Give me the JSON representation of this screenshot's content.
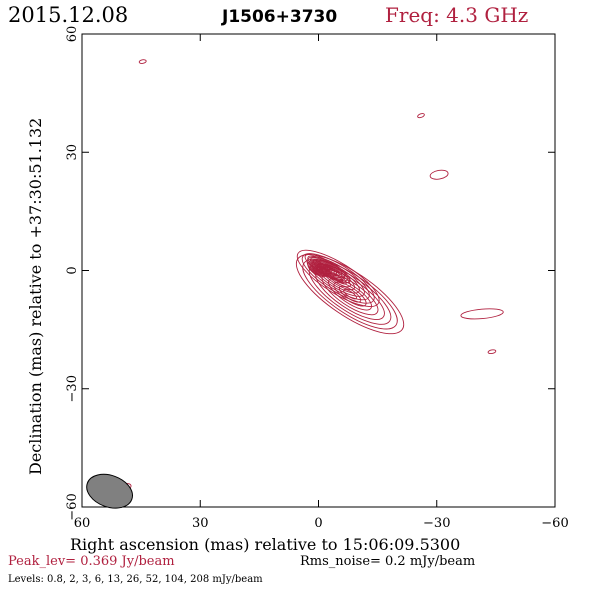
{
  "header": {
    "date": "2015.12.08",
    "source": "J1506+3730",
    "freq": "Freq: 4.3 GHz"
  },
  "chart_data": {
    "type": "contour",
    "xlabel": "Right ascension (mas) relative to 15:06:09.5300",
    "ylabel": "Declination (mas) relative to +37:30:51.132",
    "xlim": [
      60,
      -60
    ],
    "ylim": [
      -60,
      60
    ],
    "xticks": [
      60,
      30,
      0,
      -30,
      -60
    ],
    "yticks": [
      -60,
      -30,
      0,
      30,
      60
    ],
    "xtick_labels": [
      "60",
      "30",
      "0",
      "−30",
      "−60"
    ],
    "ytick_labels": [
      "−60",
      "−30",
      "0",
      "30",
      "60"
    ],
    "contour_color": "#b0203f",
    "beam": {
      "x": 53,
      "y": -56,
      "major": 6,
      "minor": 2.5,
      "pa": -20,
      "fill": "#808080"
    },
    "core_components": [
      {
        "x": -2.3,
        "y": 0.5,
        "a": 6.5,
        "b": 1.8,
        "pa": -30
      },
      {
        "x": 0,
        "y": 0.5,
        "a": 3.0,
        "b": 1.6,
        "pa": -30
      },
      {
        "x": -5,
        "y": -2,
        "a": 12,
        "b": 3.8,
        "pa": -32
      },
      {
        "x": -8,
        "y": -6,
        "a": 16,
        "b": 5.5,
        "pa": -34
      }
    ],
    "islands": [
      {
        "x": -30.6,
        "y": 24.3,
        "a": 2.3,
        "b": 1.1,
        "pa": -10
      },
      {
        "x": -26,
        "y": 39.3,
        "a": 0.9,
        "b": 0.45,
        "pa": -20
      },
      {
        "x": 44.6,
        "y": 53,
        "a": 0.9,
        "b": 0.45,
        "pa": -10
      },
      {
        "x": -41.5,
        "y": -11,
        "a": 5.4,
        "b": 1.2,
        "pa": -5
      },
      {
        "x": -44,
        "y": -20.6,
        "a": 1.0,
        "b": 0.45,
        "pa": -10
      },
      {
        "x": 49,
        "y": -55,
        "a": 1.5,
        "b": 0.85,
        "pa": -20
      }
    ],
    "footer": {
      "peak": "Peak_lev=  0.369 Jy/beam",
      "rms": "Rms_noise=  0.2 mJy/beam",
      "levels": "Levels: 0.8,   2,   3,   6,  13,  26,  52, 104, 208 mJy/beam"
    }
  }
}
